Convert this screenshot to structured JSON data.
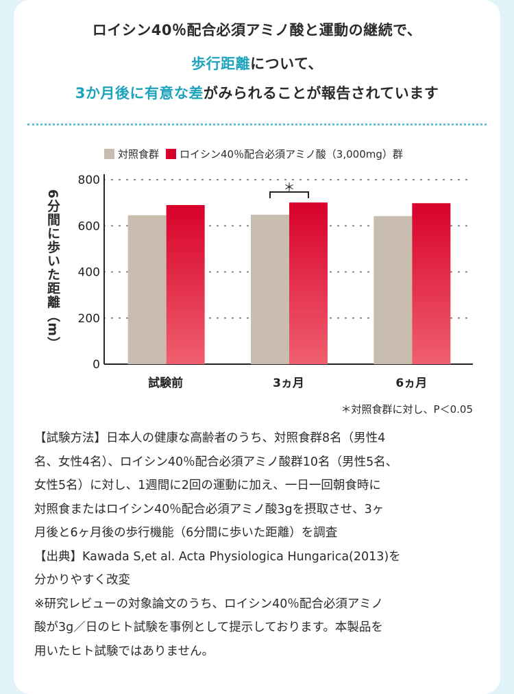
{
  "headline": {
    "line1": "ロイシン40％配合必須アミノ酸と運動の継続で、",
    "line2_highlight": "歩行距離",
    "line2_rest": "について、",
    "line3_highlight": "3か月後に有意な差",
    "line3_rest": "がみられることが報告されています"
  },
  "colors": {
    "control": "#c9bdb0",
    "treatment_top": "#d7002a",
    "treatment_bottom": "#f0606f",
    "accent": "#1ea3bd"
  },
  "chart_data": {
    "type": "bar",
    "categories": [
      "試験前",
      "3ヵ月",
      "6ヵ月"
    ],
    "series": [
      {
        "name": "対照食群",
        "values": [
          646,
          648,
          642
        ]
      },
      {
        "name": "ロイシン40％配合必須アミノ酸（3,000mg）群",
        "values": [
          690,
          701,
          698
        ]
      }
    ],
    "ylabel": "6分間に歩いた距離（m）",
    "ylim": [
      0,
      800
    ],
    "yticks": [
      "0",
      "200",
      "400",
      "600",
      "800"
    ],
    "grid": true,
    "legend": "top",
    "significance": {
      "category_index": 1,
      "label": "＊"
    }
  },
  "footnote": "＊対照食群に対し、P＜0.05",
  "body_lines": [
    "【試験方法】日本人の健康な高齢者のうち、対照食群8名（男性4",
    "名、女性4名）、ロイシン40％配合必須アミノ酸群10名（男性5名、",
    "女性5名）に対し、1週間に2回の運動に加え、一日一回朝食時に",
    "対照食またはロイシン40％配合必須アミノ酸3gを摂取させ、3ヶ",
    "月後と6ヶ月後の歩行機能（6分間に歩いた距離）を調査",
    "【出典】Kawada S,et al. Acta Physiologica Hungarica(2013)を",
    "分かりやすく改変",
    "※研究レビューの対象論文のうち、ロイシン40％配合必須アミノ",
    "酸が3g／日のヒト試験を事例として提示しております。本製品を",
    "用いたヒト試験ではありません。"
  ]
}
